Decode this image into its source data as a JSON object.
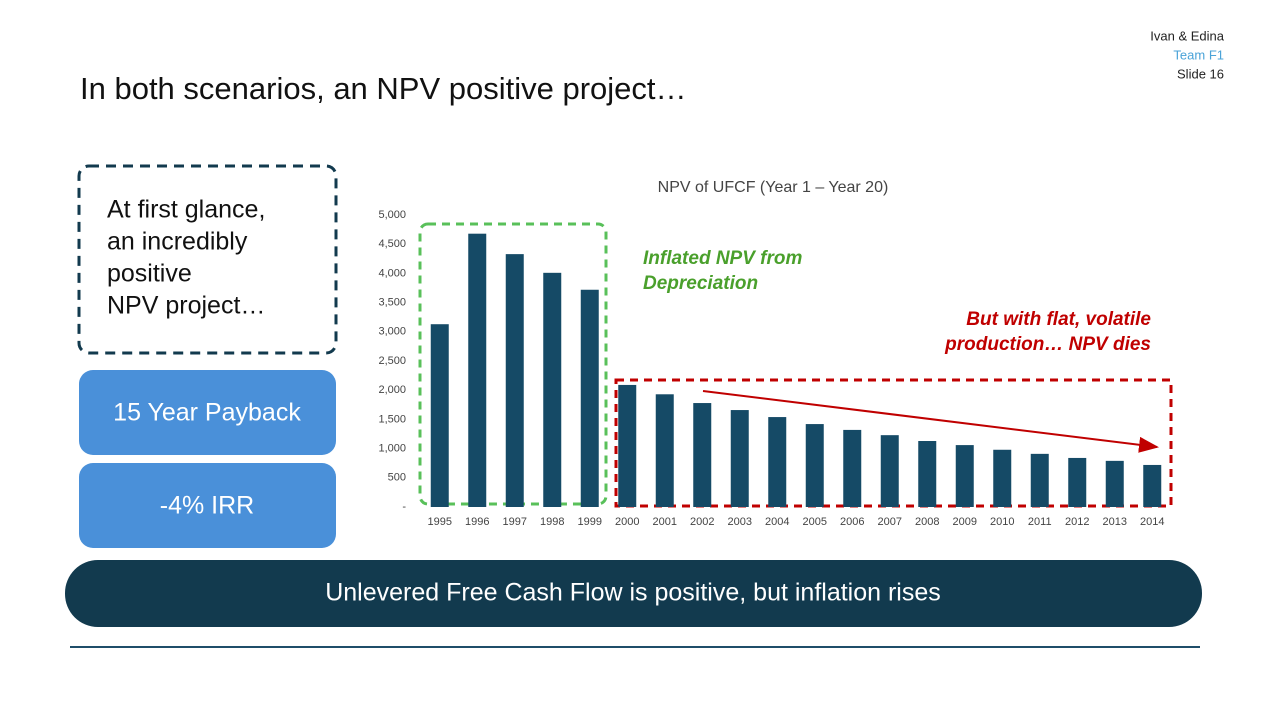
{
  "header": {
    "author": "Ivan & Edina",
    "team": "Team F1",
    "slide": "Slide 16",
    "title": "In both scenarios, an NPV positive project…"
  },
  "callout": {
    "lines": [
      "At first glance,",
      "an incredibly",
      "positive",
      "NPV project…"
    ]
  },
  "metrics": [
    "15 Year Payback",
    "-4% IRR"
  ],
  "banner": "Unlevered Free Cash Flow is positive, but inflation rises",
  "chart_data": {
    "type": "bar",
    "title": "NPV of UFCF (Year 1 – Year 20)",
    "color": "#154a66",
    "categories": [
      "1995",
      "1996",
      "1997",
      "1998",
      "1999",
      "2000",
      "2001",
      "2002",
      "2003",
      "2004",
      "2005",
      "2006",
      "2007",
      "2008",
      "2009",
      "2010",
      "2011",
      "2012",
      "2013",
      "2014"
    ],
    "values": [
      3130,
      4680,
      4330,
      4010,
      3720,
      2090,
      1930,
      1780,
      1660,
      1540,
      1420,
      1320,
      1230,
      1130,
      1060,
      980,
      910,
      840,
      790,
      720
    ],
    "ylim": [
      0,
      5000
    ],
    "yticks": [
      {
        "value": 0,
        "label": "-"
      },
      500,
      {
        "value": 1000,
        "label": "1,000"
      },
      {
        "value": 1500,
        "label": "1,500"
      },
      {
        "value": 2000,
        "label": "2,000"
      },
      {
        "value": 2500,
        "label": "2,500"
      },
      {
        "value": 3000,
        "label": "3,000"
      },
      {
        "value": 3500,
        "label": "3,500"
      },
      {
        "value": 4000,
        "label": "4,000"
      },
      {
        "value": 4500,
        "label": "4,500"
      },
      {
        "value": 5000,
        "label": "5,000"
      }
    ],
    "grid": false,
    "annotations": [
      {
        "lines": [
          "Inflated NPV from",
          "Depreciation"
        ],
        "color": "#4aa02c"
      },
      {
        "lines": [
          "But with flat, volatile",
          "production… NPV dies"
        ],
        "color": "#c00000"
      }
    ]
  }
}
